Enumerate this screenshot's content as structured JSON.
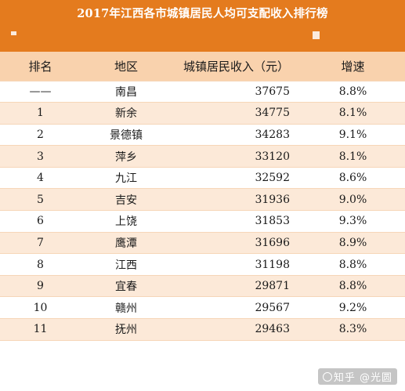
{
  "title": "2017年江西各市城镇居民人均可支配收入排行榜",
  "table": {
    "headers": {
      "rank": "排名",
      "region": "地区",
      "income": "城镇居民收入（元）",
      "growth": "增速"
    },
    "rows": [
      {
        "rank": "——",
        "region": "南昌",
        "income": "37675",
        "growth": "8.8%"
      },
      {
        "rank": "1",
        "region": "新余",
        "income": "34775",
        "growth": "8.1%"
      },
      {
        "rank": "2",
        "region": "景德镇",
        "income": "34283",
        "growth": "9.1%"
      },
      {
        "rank": "3",
        "region": "萍乡",
        "income": "33120",
        "growth": "8.1%"
      },
      {
        "rank": "4",
        "region": "九江",
        "income": "32592",
        "growth": "8.6%"
      },
      {
        "rank": "5",
        "region": "吉安",
        "income": "31936",
        "growth": "9.0%"
      },
      {
        "rank": "6",
        "region": "上饶",
        "income": "31853",
        "growth": "9.3%"
      },
      {
        "rank": "7",
        "region": "鹰潭",
        "income": "31696",
        "growth": "8.9%"
      },
      {
        "rank": "8",
        "region": "江西",
        "income": "31198",
        "growth": "8.8%"
      },
      {
        "rank": "9",
        "region": "宜春",
        "income": "29871",
        "growth": "8.8%"
      },
      {
        "rank": "10",
        "region": "赣州",
        "income": "29567",
        "growth": "9.2%"
      },
      {
        "rank": "11",
        "region": "抚州",
        "income": "29463",
        "growth": "8.3%"
      }
    ]
  },
  "credit": "知乎 @光圆",
  "colors": {
    "header_band": "#e47b1e",
    "column_header": "#f9d2ad",
    "row_stripe": "#fce9d8"
  }
}
